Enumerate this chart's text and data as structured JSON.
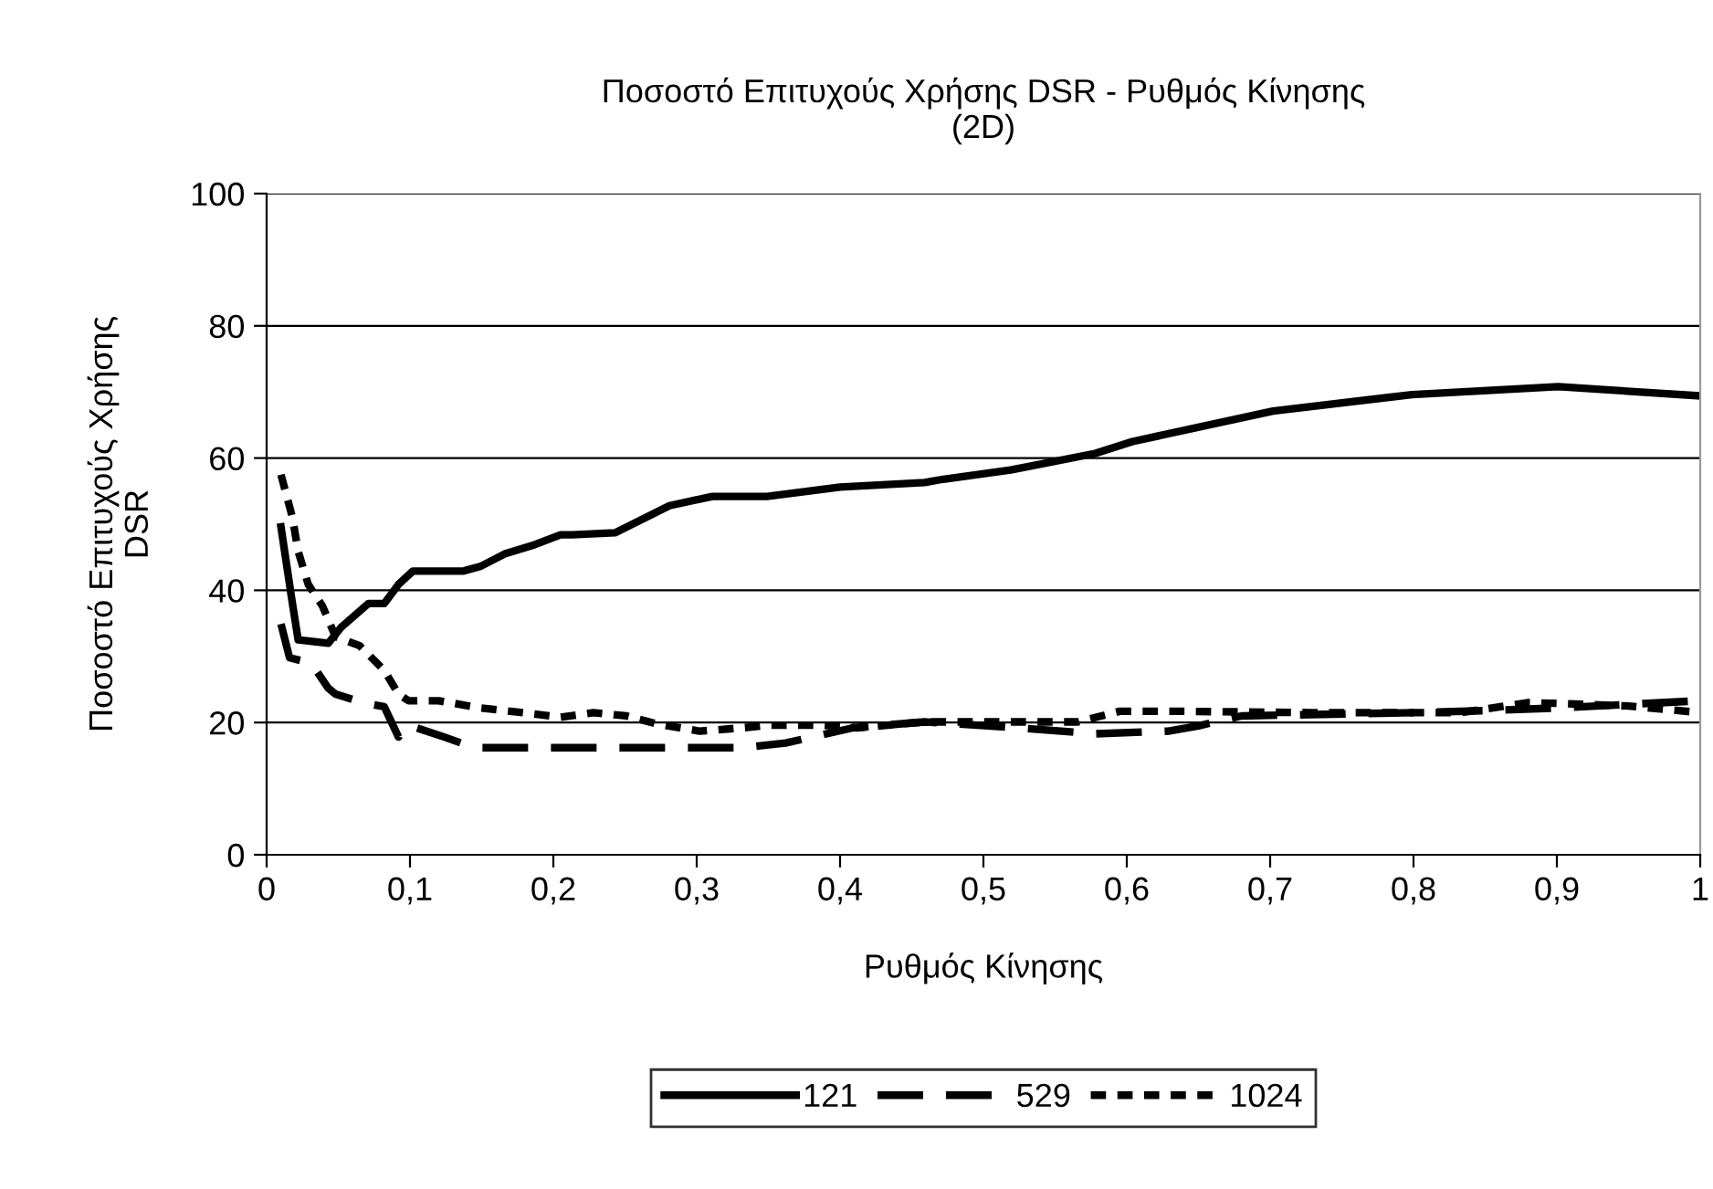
{
  "chart_data": {
    "type": "line",
    "title": "Ποσοστό Επιτυχούς Χρήσης DSR - Ρυθμός Κίνησης\n(2D)",
    "xlabel": "Ρυθμός Κίνησης",
    "ylabel": "Ποσοστό Επιτυχούς Χρήσης\nDSR",
    "xlim": [
      0,
      1
    ],
    "xticks": [
      0,
      {
        "value": 0.1,
        "label": "0,1"
      },
      {
        "value": 0.2,
        "label": "0,2"
      },
      {
        "value": 0.3,
        "label": "0,3"
      },
      {
        "value": 0.4,
        "label": "0,4"
      },
      {
        "value": 0.5,
        "label": "0,5"
      },
      {
        "value": 0.6,
        "label": "0,6"
      },
      {
        "value": 0.7,
        "label": "0,7"
      },
      {
        "value": 0.8,
        "label": "0,8"
      },
      {
        "value": 0.9,
        "label": "0,9"
      },
      1
    ],
    "ylim": [
      0,
      100
    ],
    "yticks": [
      0,
      20,
      40,
      60,
      80,
      100
    ],
    "grid": "y",
    "legend": "bottom",
    "marker": "none",
    "series": [
      {
        "name": "121",
        "color": "#000000",
        "line_style": "solid",
        "x": [
          0.01,
          0.018,
          0.022,
          0.043,
          0.052,
          0.071,
          0.082,
          0.092,
          0.102,
          0.137,
          0.149,
          0.166,
          0.187,
          0.205,
          0.213,
          0.243,
          0.281,
          0.311,
          0.349,
          0.4,
          0.459,
          0.472,
          0.519,
          0.578,
          0.604,
          0.702,
          0.799,
          0.901,
          1.0
        ],
        "values": [
          49.6,
          38,
          32.5,
          32,
          34.4,
          38,
          38,
          40.9,
          42.9,
          42.9,
          43.6,
          45.5,
          46.9,
          48.4,
          48.4,
          48.7,
          52.8,
          54.2,
          54.2,
          55.6,
          56.3,
          56.8,
          58.2,
          60.7,
          62.5,
          67.1,
          69.6,
          70.8,
          69.4
        ]
      },
      {
        "name": "529",
        "color": "#000000",
        "line_style": "dashed",
        "x": [
          0.01,
          0.016,
          0.031,
          0.043,
          0.048,
          0.069,
          0.082,
          0.092,
          0.099,
          0.124,
          0.145,
          0.332,
          0.362,
          0.409,
          0.459,
          0.523,
          0.578,
          0.629,
          0.65,
          0.68,
          0.8,
          0.85,
          0.9,
          1.0
        ],
        "values": [
          34.9,
          29.8,
          29,
          25.2,
          24.3,
          22.9,
          22.4,
          17.8,
          19.6,
          17.8,
          16.2,
          16.2,
          16.9,
          19.2,
          20.1,
          19.2,
          18.3,
          18.7,
          19.5,
          21,
          21.5,
          21.8,
          22.2,
          23.3
        ]
      },
      {
        "name": "1024",
        "color": "#000000",
        "line_style": "dotted",
        "x": [
          0.01,
          0.018,
          0.022,
          0.029,
          0.039,
          0.048,
          0.065,
          0.082,
          0.092,
          0.099,
          0.12,
          0.149,
          0.179,
          0.205,
          0.228,
          0.251,
          0.272,
          0.302,
          0.332,
          0.352,
          0.387,
          0.412,
          0.459,
          0.51,
          0.566,
          0.595,
          0.638,
          0.727,
          0.833,
          0.88,
          0.9,
          0.95,
          1.0
        ],
        "values": [
          57.5,
          51,
          45.9,
          40.9,
          37.6,
          33,
          31.6,
          27.9,
          24.3,
          23.3,
          23.3,
          22.2,
          21.5,
          20.8,
          21.5,
          21,
          19.8,
          18.7,
          19.2,
          19.6,
          19.6,
          19.2,
          20.1,
          20.1,
          20.1,
          21.7,
          21.7,
          21.5,
          21.5,
          23,
          22.9,
          22.5,
          21.5
        ]
      }
    ]
  }
}
